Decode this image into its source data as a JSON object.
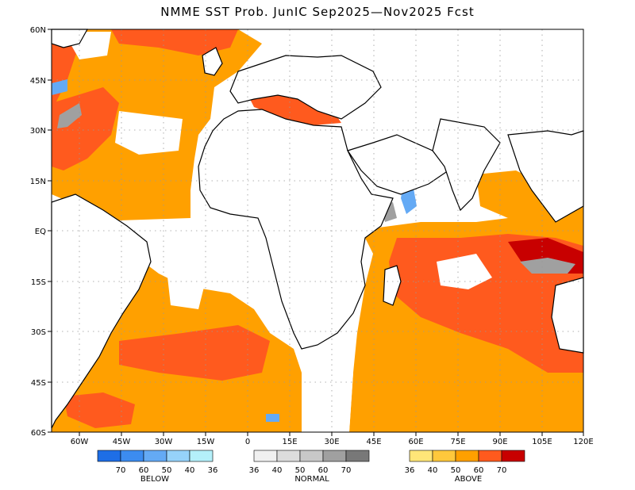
{
  "title": "NMME SST Prob. JunIC   Sep2025—Nov2025 Fcst",
  "map": {
    "lat_labels": [
      "60N",
      "45N",
      "30N",
      "15N",
      "EQ",
      "15S",
      "30S",
      "45S",
      "60S"
    ],
    "lon_labels": [
      "60W",
      "45W",
      "30W",
      "15W",
      "0",
      "15E",
      "30E",
      "45E",
      "60E",
      "75E",
      "90E",
      "105E",
      "120E"
    ],
    "region": "Atlantic and Indian Ocean",
    "lon_range": [
      -70,
      120
    ],
    "lat_range": [
      -60,
      60
    ],
    "grid": "dotted"
  },
  "legend": {
    "below": {
      "title": "BELOW",
      "ticks": [
        "70",
        "60",
        "50",
        "40",
        "36"
      ],
      "colors": [
        "#1e6ee6",
        "#3c8cf0",
        "#64aaf5",
        "#96d2fa",
        "#b4f0fa"
      ]
    },
    "normal": {
      "title": "NORMAL",
      "ticks": [
        "36",
        "40",
        "50",
        "60",
        "70"
      ],
      "colors": [
        "#f0f0f0",
        "#dcdcdc",
        "#c8c8c8",
        "#a0a0a0",
        "#787878"
      ]
    },
    "above": {
      "title": "ABOVE",
      "ticks": [
        "36",
        "40",
        "50",
        "60",
        "70"
      ],
      "colors": [
        "#ffe678",
        "#ffc83c",
        "#ffa000",
        "#ff5a1e",
        "#c80000"
      ]
    }
  }
}
